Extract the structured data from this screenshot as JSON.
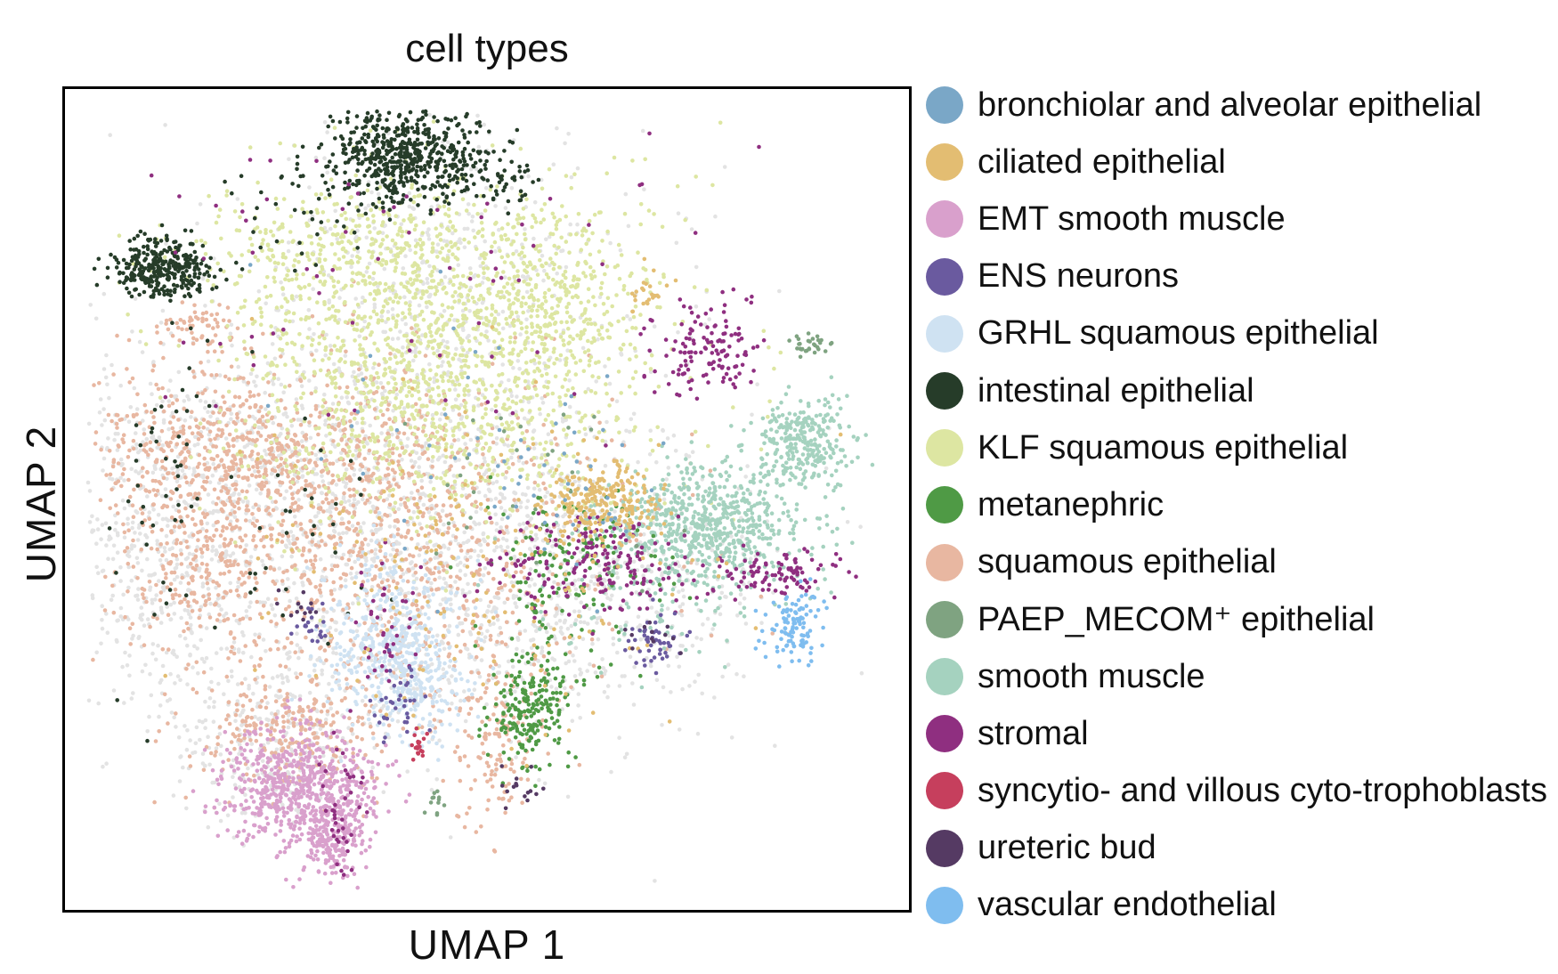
{
  "chart_data": {
    "type": "scatter",
    "title": "cell types",
    "xlabel": "UMAP 1",
    "ylabel": "UMAP 2",
    "grid": false,
    "ticks": false,
    "legend_placement": "right",
    "xlim": [
      0,
      100
    ],
    "ylim": [
      0,
      100
    ],
    "series": [
      {
        "name": "bronchiolar and alveolar epithelial",
        "color": "#7aa7c7"
      },
      {
        "name": "ciliated epithelial",
        "color": "#e3bd72"
      },
      {
        "name": "EMT smooth muscle",
        "color": "#d9a0cc"
      },
      {
        "name": "ENS neurons",
        "color": "#6a5a9f"
      },
      {
        "name": "GRHL squamous epithelial",
        "color": "#cfe2f2"
      },
      {
        "name": "intestinal epithelial",
        "color": "#263c29"
      },
      {
        "name": "KLF squamous epithelial",
        "color": "#dde6a2"
      },
      {
        "name": "metanephric",
        "color": "#4f9a45"
      },
      {
        "name": "squamous epithelial",
        "color": "#e8b7a1"
      },
      {
        "name": "PAEP_MECOM⁺ epithelial",
        "color": "#7fa381"
      },
      {
        "name": "smooth muscle",
        "color": "#a5d2bf"
      },
      {
        "name": "stromal",
        "color": "#8f2f80"
      },
      {
        "name": "syncytio- and villous cyto-trophoblasts",
        "color": "#c63f5d"
      },
      {
        "name": "ureteric bud",
        "color": "#553a63"
      },
      {
        "name": "vascular endothelial",
        "color": "#7fbdef"
      }
    ],
    "unassigned_color": "#e3e3e3",
    "clusters": [
      {
        "s": -1,
        "x": 40,
        "y": 55,
        "sx": 18,
        "sy": 12,
        "n": 1400
      },
      {
        "s": -1,
        "x": 18,
        "y": 44,
        "sx": 12,
        "sy": 6,
        "n": 420
      },
      {
        "s": -1,
        "x": 12,
        "y": 60,
        "sx": 6,
        "sy": 8,
        "n": 260
      },
      {
        "s": -1,
        "x": 24,
        "y": 80,
        "sx": 6,
        "sy": 5,
        "n": 260
      },
      {
        "s": -1,
        "x": 45,
        "y": 23,
        "sx": 13,
        "sy": 10,
        "n": 500
      },
      {
        "s": -1,
        "x": 62,
        "y": 60,
        "sx": 12,
        "sy": 7,
        "n": 350
      },
      {
        "s": 8,
        "x": 22,
        "y": 44,
        "sx": 11,
        "sy": 5,
        "n": 700
      },
      {
        "s": 8,
        "x": 34,
        "y": 55,
        "sx": 12,
        "sy": 9,
        "n": 600
      },
      {
        "s": 8,
        "x": 16,
        "y": 58,
        "sx": 5,
        "sy": 5,
        "n": 200
      },
      {
        "s": 8,
        "x": 27,
        "y": 78,
        "sx": 5,
        "sy": 4,
        "n": 260
      },
      {
        "s": 8,
        "x": 51,
        "y": 79,
        "sx": 2.5,
        "sy": 6,
        "n": 140
      },
      {
        "s": 8,
        "x": 16,
        "y": 29,
        "sx": 2,
        "sy": 1.5,
        "n": 60
      },
      {
        "s": 8,
        "x": 44,
        "y": 59,
        "sx": 14,
        "sy": 10,
        "n": 300
      },
      {
        "s": 6,
        "x": 45,
        "y": 33,
        "sx": 12,
        "sy": 10,
        "n": 1500
      },
      {
        "s": 6,
        "x": 35,
        "y": 20,
        "sx": 10,
        "sy": 4,
        "n": 350
      },
      {
        "s": 6,
        "x": 60,
        "y": 26,
        "sx": 6,
        "sy": 6,
        "n": 200
      },
      {
        "s": 5,
        "x": 12,
        "y": 22,
        "sx": 3,
        "sy": 1.8,
        "n": 320
      },
      {
        "s": 5,
        "x": 40,
        "y": 8,
        "sx": 4.5,
        "sy": 3,
        "n": 560
      },
      {
        "s": 5,
        "x": 28,
        "y": 52,
        "sx": 10,
        "sy": 7,
        "n": 40
      },
      {
        "s": 5,
        "x": 13,
        "y": 44,
        "sx": 3,
        "sy": 12,
        "n": 40
      },
      {
        "s": 5,
        "x": 30,
        "y": 14,
        "sx": 6,
        "sy": 3,
        "n": 40
      },
      {
        "s": 5,
        "x": 51,
        "y": 10,
        "sx": 2.5,
        "sy": 2,
        "n": 60
      },
      {
        "s": 2,
        "x": 28,
        "y": 85,
        "sx": 4.5,
        "sy": 3.5,
        "n": 650
      },
      {
        "s": 2,
        "x": 32,
        "y": 91,
        "sx": 2,
        "sy": 2.5,
        "n": 200
      },
      {
        "s": 4,
        "x": 39,
        "y": 67,
        "sx": 4,
        "sy": 5,
        "n": 400
      },
      {
        "s": 4,
        "x": 42,
        "y": 73,
        "sx": 2.5,
        "sy": 3,
        "n": 150
      },
      {
        "s": 10,
        "x": 76,
        "y": 53,
        "sx": 6,
        "sy": 3.5,
        "n": 650
      },
      {
        "s": 10,
        "x": 87,
        "y": 43,
        "sx": 3,
        "sy": 2.5,
        "n": 280
      },
      {
        "s": 10,
        "x": 70,
        "y": 60,
        "sx": 6,
        "sy": 5,
        "n": 120
      },
      {
        "s": 7,
        "x": 55,
        "y": 75,
        "sx": 2.5,
        "sy": 3.5,
        "n": 220
      },
      {
        "s": 7,
        "x": 60,
        "y": 58,
        "sx": 5,
        "sy": 5,
        "n": 140
      },
      {
        "s": 11,
        "x": 63,
        "y": 58,
        "sx": 6,
        "sy": 3,
        "n": 200
      },
      {
        "s": 11,
        "x": 76,
        "y": 32,
        "sx": 3,
        "sy": 3,
        "n": 130
      },
      {
        "s": 11,
        "x": 85,
        "y": 59,
        "sx": 4,
        "sy": 1.4,
        "n": 100
      },
      {
        "s": 11,
        "x": 33,
        "y": 88,
        "sx": 1.2,
        "sy": 4,
        "n": 40
      },
      {
        "s": 11,
        "x": 38,
        "y": 65,
        "sx": 2,
        "sy": 4,
        "n": 40
      },
      {
        "s": 11,
        "x": 40,
        "y": 22,
        "sx": 20,
        "sy": 12,
        "n": 80
      },
      {
        "s": 1,
        "x": 63,
        "y": 50,
        "sx": 3.5,
        "sy": 2.5,
        "n": 220
      },
      {
        "s": 1,
        "x": 48,
        "y": 57,
        "sx": 14,
        "sy": 10,
        "n": 200
      },
      {
        "s": 1,
        "x": 69,
        "y": 25,
        "sx": 1.2,
        "sy": 1.2,
        "n": 25
      },
      {
        "s": 14,
        "x": 86,
        "y": 65,
        "sx": 1.8,
        "sy": 2.5,
        "n": 110
      },
      {
        "s": 3,
        "x": 70,
        "y": 67,
        "sx": 1.6,
        "sy": 1.6,
        "n": 50
      },
      {
        "s": 3,
        "x": 40,
        "y": 74,
        "sx": 1.5,
        "sy": 3,
        "n": 35
      },
      {
        "s": 3,
        "x": 30,
        "y": 65,
        "sx": 1.2,
        "sy": 1.2,
        "n": 20
      },
      {
        "s": 9,
        "x": 88,
        "y": 31,
        "sx": 1.5,
        "sy": 0.6,
        "n": 30
      },
      {
        "s": 9,
        "x": 44,
        "y": 87,
        "sx": 0.5,
        "sy": 1,
        "n": 12
      },
      {
        "s": 9,
        "x": 55,
        "y": 48,
        "sx": 8,
        "sy": 8,
        "n": 30
      },
      {
        "s": 12,
        "x": 42,
        "y": 80,
        "sx": 0.5,
        "sy": 1.2,
        "n": 18
      },
      {
        "s": 0,
        "x": 60,
        "y": 47,
        "sx": 6,
        "sy": 6,
        "n": 40
      },
      {
        "s": 0,
        "x": 42,
        "y": 40,
        "sx": 10,
        "sy": 8,
        "n": 25
      },
      {
        "s": 13,
        "x": 28,
        "y": 63,
        "sx": 1.5,
        "sy": 1,
        "n": 12
      },
      {
        "s": 13,
        "x": 53,
        "y": 85,
        "sx": 1.5,
        "sy": 1,
        "n": 15
      },
      {
        "s": 13,
        "x": 70,
        "y": 66,
        "sx": 1.5,
        "sy": 1.5,
        "n": 12
      }
    ]
  }
}
